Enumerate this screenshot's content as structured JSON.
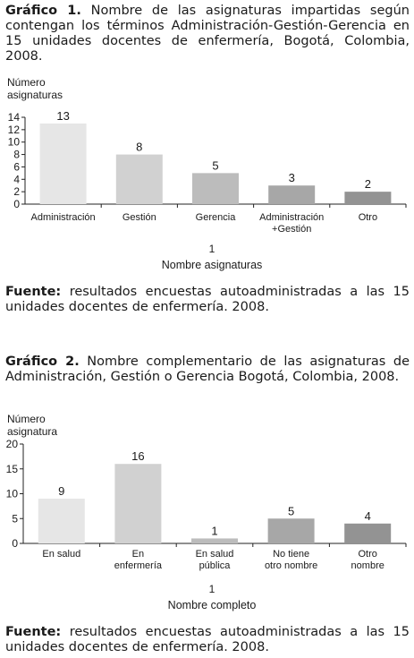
{
  "chart_data": [
    {
      "type": "bar",
      "caption_label": "Gráfico 1.",
      "caption_text": "Nombre de las asignaturas impartidas según contengan los términos Administración-Gestión-Gerencia en 15 unidades docentes de enfermería, Bogotá, Colombia, 2008.",
      "ylabel_lines": [
        "Número",
        "asignaturas"
      ],
      "categories": [
        [
          "Administración"
        ],
        [
          "Gestión"
        ],
        [
          "Gerencia"
        ],
        [
          "Administración",
          "+Gestión"
        ],
        [
          "Otro"
        ]
      ],
      "values": [
        13,
        8,
        5,
        3,
        2
      ],
      "colors": [
        "#e6e6e6",
        "#d1d1d1",
        "#bcbcbc",
        "#a7a7a7",
        "#939393"
      ],
      "yticks": [
        0,
        2,
        4,
        6,
        8,
        10,
        12,
        14
      ],
      "ylim": [
        0,
        14
      ],
      "x_extra": "1",
      "xlabel": "Nombre asignaturas",
      "source_label": "Fuente:",
      "source_text": "resultados encuestas autoadministradas a las 15 unidades docentes de enfermería. 2008."
    },
    {
      "type": "bar",
      "caption_label": "Gráfico 2.",
      "caption_text": "Nombre complementario de las asignaturas de Administración, Gestión o Gerencia Bogotá, Colombia, 2008.",
      "ylabel_lines": [
        "Número",
        "asignatura"
      ],
      "categories": [
        [
          "En salud"
        ],
        [
          "En",
          "enfermería"
        ],
        [
          "En salud",
          "pública"
        ],
        [
          "No tiene",
          "otro nombre"
        ],
        [
          "Otro",
          "nombre"
        ]
      ],
      "values": [
        9,
        16,
        1,
        5,
        4
      ],
      "colors": [
        "#e6e6e6",
        "#d1d1d1",
        "#bcbcbc",
        "#a7a7a7",
        "#939393"
      ],
      "yticks": [
        0,
        5,
        10,
        15,
        20
      ],
      "ylim": [
        0,
        20
      ],
      "x_extra": "1",
      "xlabel": "Nombre completo",
      "source_label": "Fuente:",
      "source_text": "resultados encuestas autoadministradas a las 15 unidades docentes de enfermería. 2008."
    }
  ]
}
